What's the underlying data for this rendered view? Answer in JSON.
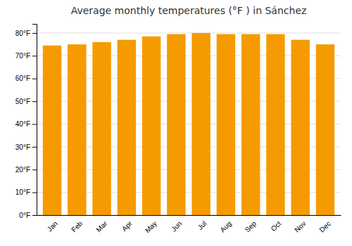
{
  "chart_data": {
    "type": "bar",
    "title": "Average monthly temperatures (°F ) in Sánchez",
    "categories": [
      "Jan",
      "Feb",
      "Mar",
      "Apr",
      "May",
      "Jun",
      "Jul",
      "Aug",
      "Sep",
      "Oct",
      "Nov",
      "Dec"
    ],
    "values": [
      74.5,
      75.0,
      76.0,
      77.0,
      78.5,
      79.5,
      80.0,
      79.5,
      79.5,
      79.5,
      77.0,
      75.0
    ],
    "color": "#F59B00",
    "ylim": [
      0,
      84
    ],
    "yticks": [
      {
        "value": 0,
        "label": "0°F"
      },
      {
        "value": 10,
        "label": "10°F"
      },
      {
        "value": 20,
        "label": "20°F"
      },
      {
        "value": 30,
        "label": "30°F"
      },
      {
        "value": 40,
        "label": "40°F"
      },
      {
        "value": 50,
        "label": "50°F"
      },
      {
        "value": 60,
        "label": "60°F"
      },
      {
        "value": 70,
        "label": "70°F"
      },
      {
        "value": 80,
        "label": "80°F"
      }
    ],
    "grid": true
  }
}
